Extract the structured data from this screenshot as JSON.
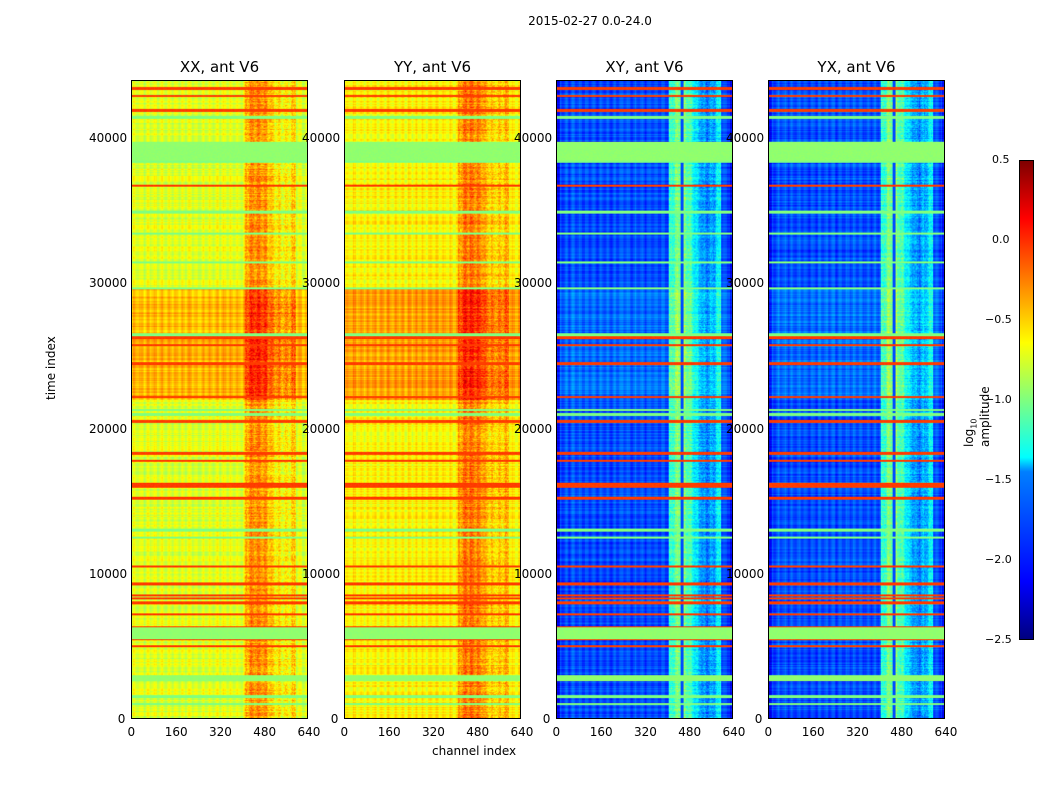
{
  "chart_data": {
    "type": "heatmap",
    "title": "2015-02-27 0.0-24.0",
    "xlabel": "channel index",
    "ylabel": "time index",
    "xlim": [
      0,
      640
    ],
    "ylim": [
      0,
      44000
    ],
    "xticks": [
      "0",
      "160",
      "320",
      "480",
      "640"
    ],
    "yticks": [
      "0",
      "10000",
      "20000",
      "30000",
      "40000"
    ],
    "colorbar": {
      "label": "log10 amplitude",
      "label_main": "log",
      "label_sub": "10",
      "label_tail": " amplitude",
      "range": [
        -2.5,
        0.5
      ],
      "ticks": [
        "0.5",
        "0.0",
        "−0.5",
        "−1.0",
        "−1.5",
        "−2.0",
        "−2.5"
      ],
      "colormap": "jet"
    },
    "panels": [
      {
        "title": "XX, ant V6",
        "base": -0.72,
        "active_channels": [
          410,
          600
        ],
        "active_boost": 0.45,
        "high_period": [
          22000,
          29700
        ],
        "high_boost": 0.3
      },
      {
        "title": "YY, ant V6",
        "base": -0.6,
        "active_channels": [
          410,
          600
        ],
        "active_boost": 0.4,
        "high_period": [
          22000,
          29700
        ],
        "high_boost": 0.25
      },
      {
        "title": "XY, ant V6",
        "base": -1.9,
        "active_channels": [
          405,
          600
        ],
        "active_boost": 0.9,
        "high_period": [
          22000,
          29700
        ],
        "high_boost": 0.1
      },
      {
        "title": "YX, ant V6",
        "base": -1.9,
        "active_channels": [
          405,
          600
        ],
        "active_boost": 0.9,
        "high_period": [
          22000,
          29700
        ],
        "high_boost": 0.1
      }
    ],
    "flag_rows_high": [
      43500,
      43000,
      42000,
      36800,
      26300,
      25800,
      24500,
      22200,
      20500,
      18300,
      17800,
      16200,
      16000,
      15200,
      10500,
      9300,
      8500,
      8300,
      8000,
      7200,
      6300,
      5500,
      5000,
      2900
    ],
    "flag_rows_mid": [
      41500,
      39500,
      39000,
      38500,
      35000,
      33500,
      31500,
      29700,
      26500,
      21300,
      21000,
      13000,
      12500,
      6000,
      5800,
      2700,
      1500,
      1000
    ],
    "mid_value": -1.0,
    "high_value": -0.05
  }
}
